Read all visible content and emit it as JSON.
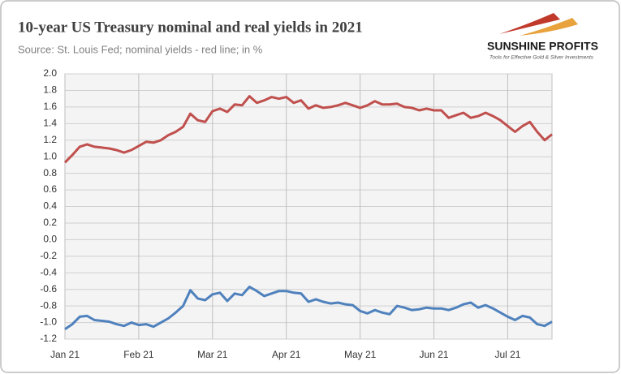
{
  "chart_data": {
    "type": "line",
    "title": "10-year US Treasury nominal and real yields in 2021",
    "subtitle": "Source: St. Louis Fed; nominal yields - red line;  in %",
    "categories": [
      "Jan 21",
      null,
      null,
      null,
      null,
      null,
      null,
      null,
      null,
      null,
      "Feb 21",
      null,
      null,
      null,
      null,
      null,
      null,
      null,
      null,
      null,
      "Mar 21",
      null,
      null,
      null,
      null,
      null,
      null,
      null,
      null,
      null,
      "Apr 21",
      null,
      null,
      null,
      null,
      null,
      null,
      null,
      null,
      null,
      "May 21",
      null,
      null,
      null,
      null,
      null,
      null,
      null,
      null,
      null,
      "Jun 21",
      null,
      null,
      null,
      null,
      null,
      null,
      null,
      null,
      null,
      "Jul 21",
      null,
      null,
      null,
      null,
      null,
      null
    ],
    "series": [
      {
        "name": "nominal yields",
        "color": "#c0504d",
        "values": [
          0.93,
          1.02,
          1.12,
          1.15,
          1.12,
          1.11,
          1.1,
          1.08,
          1.05,
          1.08,
          1.13,
          1.18,
          1.17,
          1.2,
          1.26,
          1.3,
          1.36,
          1.52,
          1.44,
          1.42,
          1.55,
          1.58,
          1.54,
          1.63,
          1.62,
          1.73,
          1.65,
          1.68,
          1.72,
          1.7,
          1.72,
          1.65,
          1.68,
          1.58,
          1.62,
          1.59,
          1.6,
          1.62,
          1.65,
          1.62,
          1.59,
          1.62,
          1.67,
          1.63,
          1.63,
          1.64,
          1.6,
          1.59,
          1.56,
          1.58,
          1.56,
          1.56,
          1.47,
          1.5,
          1.53,
          1.47,
          1.49,
          1.53,
          1.49,
          1.44,
          1.37,
          1.3,
          1.37,
          1.42,
          1.3,
          1.2,
          1.27
        ]
      },
      {
        "name": "real yields",
        "color": "#4f81bd",
        "values": [
          -1.08,
          -1.02,
          -0.93,
          -0.92,
          -0.97,
          -0.98,
          -0.99,
          -1.02,
          -1.04,
          -1.0,
          -1.03,
          -1.02,
          -1.05,
          -1.0,
          -0.95,
          -0.88,
          -0.8,
          -0.61,
          -0.71,
          -0.73,
          -0.66,
          -0.64,
          -0.74,
          -0.65,
          -0.67,
          -0.57,
          -0.62,
          -0.68,
          -0.65,
          -0.62,
          -0.62,
          -0.64,
          -0.65,
          -0.75,
          -0.72,
          -0.75,
          -0.77,
          -0.76,
          -0.78,
          -0.79,
          -0.86,
          -0.89,
          -0.85,
          -0.88,
          -0.9,
          -0.8,
          -0.82,
          -0.85,
          -0.84,
          -0.82,
          -0.83,
          -0.83,
          -0.85,
          -0.82,
          -0.78,
          -0.76,
          -0.82,
          -0.79,
          -0.83,
          -0.88,
          -0.93,
          -0.97,
          -0.92,
          -0.94,
          -1.02,
          -1.04,
          -0.99
        ]
      }
    ],
    "ylim": [
      -1.2,
      2.0
    ],
    "yticks": [
      {
        "value": -1.2,
        "label": "-1.2"
      },
      {
        "value": -1.0,
        "label": "-1.0"
      },
      {
        "value": -0.8,
        "label": "-0.8"
      },
      {
        "value": -0.6,
        "label": "-0.6"
      },
      {
        "value": -0.4,
        "label": "-0.4"
      },
      {
        "value": -0.2,
        "label": "-0.2"
      },
      {
        "value": 0,
        "label": "0.0"
      },
      {
        "value": 0.2,
        "label": "0.2"
      },
      {
        "value": 0.4,
        "label": "0.4"
      },
      {
        "value": 0.6,
        "label": "0.6"
      },
      {
        "value": 0.8,
        "label": "0.8"
      },
      {
        "value": 1.0,
        "label": "1.0"
      },
      {
        "value": 1.2,
        "label": "1.2"
      },
      {
        "value": 1.4,
        "label": "1.4"
      },
      {
        "value": 1.6,
        "label": "1.6"
      },
      {
        "value": 1.8,
        "label": "1.8"
      },
      {
        "value": 2.0,
        "label": "2.0"
      }
    ],
    "grid": true
  },
  "logo": {
    "name": "SUNSHINE PROFITS",
    "tagline": "Tools for Effective Gold & Silver Investments"
  }
}
